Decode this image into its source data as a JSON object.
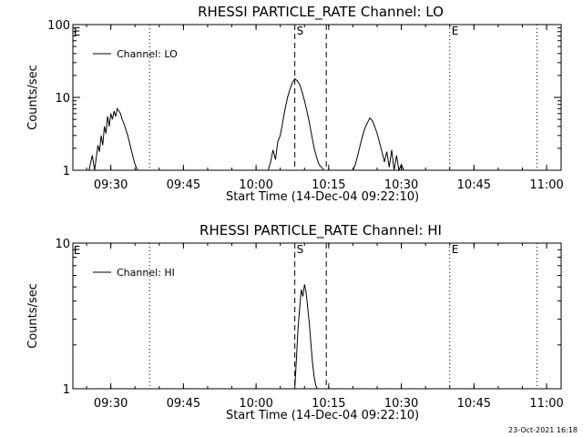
{
  "footer_stamp": "23-Oct-2021 16:18",
  "chart_data": [
    {
      "type": "line",
      "title": "RHESSI PARTICLE_RATE Channel: LO",
      "xlabel": "Start Time (14-Dec-04 09:22:10)",
      "ylabel": "Counts/sec",
      "yscale": "log",
      "xlim": [
        "09:22:10",
        "11:03:00"
      ],
      "ylim": [
        1,
        100
      ],
      "x_ticks": [
        "09:30",
        "09:45",
        "10:00",
        "10:15",
        "10:30",
        "10:45",
        "11:00"
      ],
      "y_ticks": [
        "1",
        "10",
        "100"
      ],
      "legend": "top-left",
      "series": [
        {
          "name": "Channel: LO",
          "x": [
            "09:25:30",
            "09:26:10",
            "09:26:40",
            "09:27:00",
            "09:27:20",
            "09:27:40",
            "09:28:00",
            "09:28:20",
            "09:28:40",
            "09:29:00",
            "09:29:20",
            "09:29:40",
            "09:30:00",
            "09:30:20",
            "09:30:40",
            "09:31:00",
            "09:31:20",
            "09:31:40",
            "09:32:00",
            "09:32:20",
            "09:32:40",
            "09:33:00",
            "09:33:30",
            "09:34:00",
            "09:34:30",
            "09:35:00",
            "09:35:30",
            "09:36:00",
            "09:36:30",
            "10:02:30",
            "10:03:00",
            "10:03:30",
            "10:04:00",
            "10:04:30",
            "10:05:00",
            "10:05:30",
            "10:06:00",
            "10:06:30",
            "10:07:00",
            "10:07:30",
            "10:08:00",
            "10:08:30",
            "10:09:00",
            "10:09:30",
            "10:10:00",
            "10:10:30",
            "10:11:00",
            "10:11:30",
            "10:12:00",
            "10:12:30",
            "10:13:00",
            "10:13:30",
            "10:14:00",
            "10:20:00",
            "10:20:30",
            "10:21:00",
            "10:21:30",
            "10:22:00",
            "10:22:30",
            "10:23:00",
            "10:23:30",
            "10:24:00",
            "10:24:30",
            "10:25:00",
            "10:25:30",
            "10:26:00",
            "10:26:30",
            "10:27:00",
            "10:27:30",
            "10:28:00",
            "10:28:30",
            "10:29:00",
            "10:29:30",
            "10:30:00",
            "10:30:30"
          ],
          "values": [
            1.0,
            1.6,
            1.0,
            1.5,
            2.2,
            1.8,
            3.0,
            2.2,
            4.0,
            3.2,
            5.5,
            4.0,
            6.0,
            5.0,
            6.5,
            5.5,
            7.0,
            6.5,
            6.0,
            5.0,
            4.5,
            3.8,
            3.0,
            2.2,
            1.6,
            1.2,
            1.0,
            1.0,
            1.0,
            1.0,
            1.3,
            1.9,
            1.4,
            2.5,
            3.0,
            4.5,
            7.0,
            10.0,
            13.0,
            16.0,
            18.0,
            17.0,
            15.0,
            12.0,
            9.0,
            6.5,
            4.5,
            3.0,
            2.0,
            1.5,
            1.2,
            1.1,
            1.0,
            1.0,
            1.2,
            1.6,
            2.2,
            3.0,
            3.8,
            4.5,
            5.2,
            4.8,
            4.0,
            3.2,
            2.4,
            1.8,
            1.3,
            1.8,
            1.1,
            1.9,
            1.0,
            1.6,
            1.0,
            1.2,
            1.0
          ]
        }
      ],
      "vlines": [
        {
          "x": "10:08:00",
          "style": "dashed",
          "label": "S"
        },
        {
          "x": "10:14:30",
          "style": "dashed",
          "label": ""
        },
        {
          "x": "09:38:00",
          "style": "dotted",
          "label": ""
        },
        {
          "x": "10:40:00",
          "style": "dotted",
          "label": "E"
        },
        {
          "x": "10:58:00",
          "style": "dotted",
          "label": ""
        }
      ],
      "corner_labels": [
        {
          "x": "09:22:30",
          "label": "E"
        }
      ]
    },
    {
      "type": "line",
      "title": "RHESSI PARTICLE_RATE Channel: HI",
      "xlabel": "Start Time (14-Dec-04 09:22:10)",
      "ylabel": "Counts/sec",
      "yscale": "log",
      "xlim": [
        "09:22:10",
        "11:03:00"
      ],
      "ylim": [
        1,
        10
      ],
      "x_ticks": [
        "09:30",
        "09:45",
        "10:00",
        "10:15",
        "10:30",
        "10:45",
        "11:00"
      ],
      "y_ticks": [
        "1",
        "10"
      ],
      "legend": "top-left",
      "series": [
        {
          "name": "Channel: HI",
          "x": [
            "10:08:00",
            "10:08:20",
            "10:08:40",
            "10:09:00",
            "10:09:20",
            "10:09:40",
            "10:10:00",
            "10:10:20",
            "10:10:40",
            "10:11:00",
            "10:11:20",
            "10:11:40",
            "10:12:00",
            "10:12:20",
            "10:12:40"
          ],
          "values": [
            1.0,
            1.6,
            2.6,
            3.6,
            4.8,
            4.3,
            5.2,
            4.6,
            3.6,
            2.8,
            2.0,
            1.5,
            1.2,
            1.05,
            1.0
          ]
        }
      ],
      "vlines": [
        {
          "x": "10:08:00",
          "style": "dashed",
          "label": "S"
        },
        {
          "x": "10:14:30",
          "style": "dashed",
          "label": ""
        },
        {
          "x": "09:38:00",
          "style": "dotted",
          "label": ""
        },
        {
          "x": "10:40:00",
          "style": "dotted",
          "label": "E"
        },
        {
          "x": "10:58:00",
          "style": "dotted",
          "label": ""
        }
      ],
      "corner_labels": [
        {
          "x": "09:22:30",
          "label": "E"
        }
      ]
    }
  ]
}
